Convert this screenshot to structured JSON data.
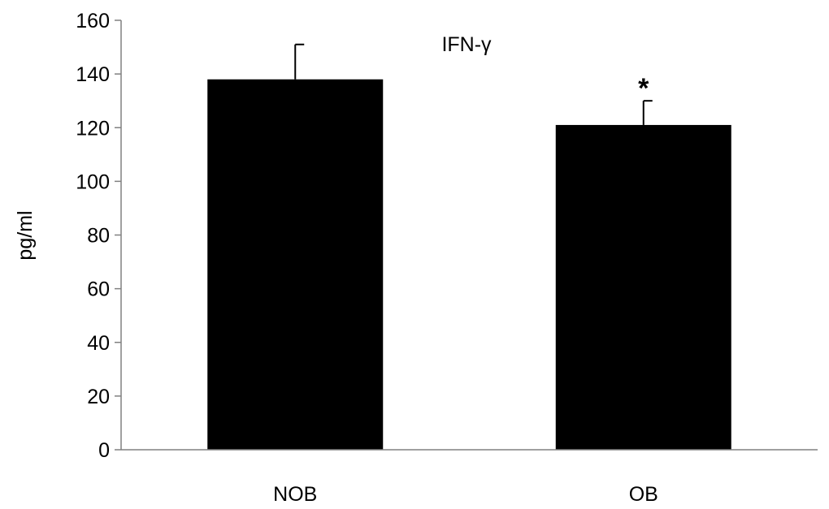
{
  "chart_data": {
    "type": "bar",
    "title": "IFN-γ",
    "xlabel": "",
    "ylabel": "pg/ml",
    "categories": [
      "NOB",
      "OB"
    ],
    "values": [
      138,
      121
    ],
    "error_bars": [
      13,
      9
    ],
    "annotations": [
      {
        "category": "OB",
        "text": "*"
      }
    ],
    "ylim": [
      0,
      160
    ],
    "yticks": [
      "0",
      "20",
      "40",
      "60",
      "80",
      "100",
      "120",
      "140",
      "160"
    ],
    "grid": false,
    "legend": "none",
    "colors": {
      "bar": "#000000",
      "axis": "#808080",
      "error_bar": "#000000"
    }
  }
}
